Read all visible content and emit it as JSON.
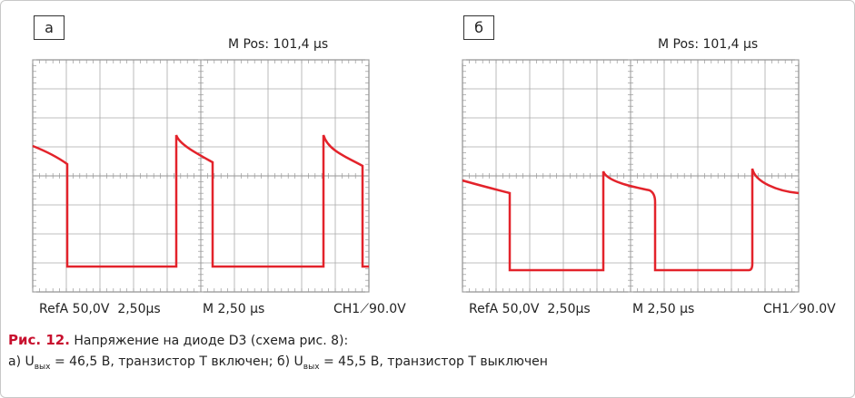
{
  "panels": [
    {
      "label": "а",
      "m_pos": "M Pos: 101,4 µs",
      "ref": "RefA 50,0V  2,50µs",
      "timebase": "M 2,50 µs",
      "trigger": "CH1⟋90.0V"
    },
    {
      "label": "б",
      "m_pos": "M Pos: 101,4 µs",
      "ref": "RefA 50,0V  2,50µs",
      "timebase": "M 2,50 µs",
      "trigger": "CH1⟋90.0V"
    }
  ],
  "caption": {
    "figure": "Рис. 12.",
    "title": "Напряжение на диоде D3 (схема рис. 8):",
    "parts": [
      "а) U",
      "вых",
      " = 46,5 В, транзистор Т включен; б) U",
      "вых",
      " = 45,5 В, транзистор Т выключен"
    ]
  }
}
